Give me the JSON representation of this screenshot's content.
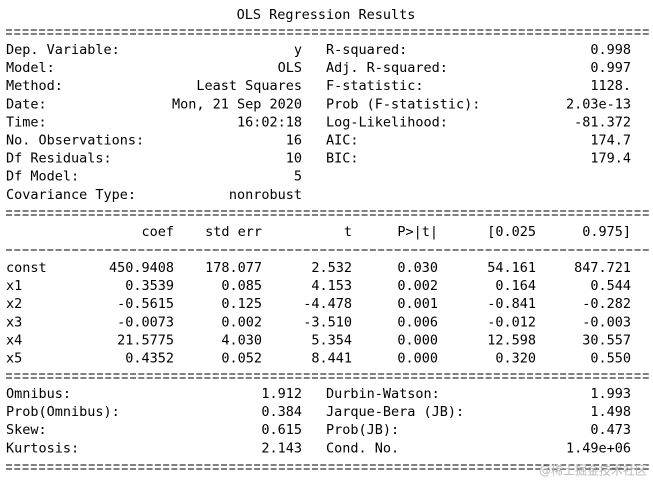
{
  "title": "OLS Regression Results",
  "model_info": {
    "left": [
      [
        "Dep. Variable:",
        "y"
      ],
      [
        "Model:",
        "OLS"
      ],
      [
        "Method:",
        "Least Squares"
      ],
      [
        "Date:",
        "Mon, 21 Sep 2020"
      ],
      [
        "Time:",
        "16:02:18"
      ],
      [
        "No. Observations:",
        "16"
      ],
      [
        "Df Residuals:",
        "10"
      ],
      [
        "Df Model:",
        "5"
      ],
      [
        "Covariance Type:",
        "nonrobust"
      ]
    ],
    "right": [
      [
        "R-squared:",
        "0.998"
      ],
      [
        "Adj. R-squared:",
        "0.997"
      ],
      [
        "F-statistic:",
        "1128."
      ],
      [
        "Prob (F-statistic):",
        "2.03e-13"
      ],
      [
        "Log-Likelihood:",
        "-81.372"
      ],
      [
        "AIC:",
        "174.7"
      ],
      [
        "BIC:",
        "179.4"
      ]
    ]
  },
  "coefficients": {
    "header": [
      "coef",
      "std err",
      "t",
      "P>|t|",
      "[0.025",
      "0.975]"
    ],
    "rows": [
      {
        "name": "const",
        "values": [
          "450.9408",
          "178.077",
          "2.532",
          "0.030",
          "54.161",
          "847.721"
        ]
      },
      {
        "name": "x1",
        "values": [
          "0.3539",
          "0.085",
          "4.153",
          "0.002",
          "0.164",
          "0.544"
        ]
      },
      {
        "name": "x2",
        "values": [
          "-0.5615",
          "0.125",
          "-4.478",
          "0.001",
          "-0.841",
          "-0.282"
        ]
      },
      {
        "name": "x3",
        "values": [
          "-0.0073",
          "0.002",
          "-3.510",
          "0.006",
          "-0.012",
          "-0.003"
        ]
      },
      {
        "name": "x4",
        "values": [
          "21.5775",
          "4.030",
          "5.354",
          "0.000",
          "12.598",
          "30.557"
        ]
      },
      {
        "name": "x5",
        "values": [
          "0.4352",
          "0.052",
          "8.441",
          "0.000",
          "0.320",
          "0.550"
        ]
      }
    ]
  },
  "diagnostics": {
    "left": [
      [
        "Omnibus:",
        "1.912"
      ],
      [
        "Prob(Omnibus):",
        "0.384"
      ],
      [
        "Skew:",
        "0.615"
      ],
      [
        "Kurtosis:",
        "2.143"
      ]
    ],
    "right": [
      [
        "Durbin-Watson:",
        "1.993"
      ],
      [
        "Jarque-Bera (JB):",
        "1.498"
      ],
      [
        "Prob(JB):",
        "0.473"
      ],
      [
        "Cond. No.",
        "1.49e+06"
      ]
    ]
  },
  "watermark": "@稀土掘金技术社区"
}
